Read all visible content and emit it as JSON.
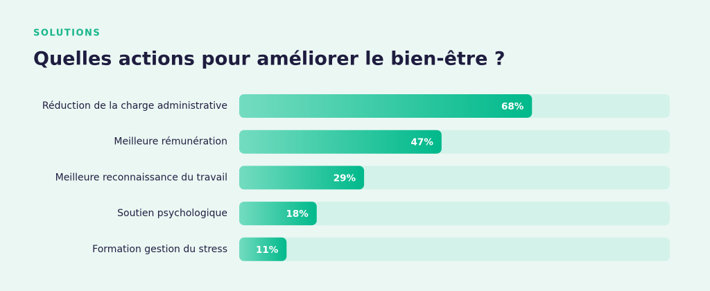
{
  "chart_data": {
    "type": "bar",
    "orientation": "horizontal",
    "kicker": "SOLUTIONS",
    "title": "Quelles actions pour améliorer le bien-être ?",
    "categories": [
      "Réduction de la charge administrative",
      "Meilleure rémunération",
      "Meilleure reconnaissance du travail",
      "Soutien psychologique",
      "Formation gestion du stress"
    ],
    "values": [
      68,
      47,
      29,
      18,
      11
    ],
    "value_labels": [
      "68%",
      "47%",
      "29%",
      "18%",
      "11%"
    ],
    "color": "#00b98b",
    "xlim": [
      0,
      100
    ]
  }
}
